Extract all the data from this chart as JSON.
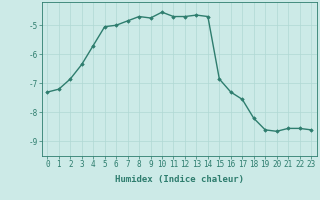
{
  "x": [
    0,
    1,
    2,
    3,
    4,
    5,
    6,
    7,
    8,
    9,
    10,
    11,
    12,
    13,
    14,
    15,
    16,
    17,
    18,
    19,
    20,
    21,
    22,
    23
  ],
  "y": [
    -7.3,
    -7.2,
    -6.85,
    -6.35,
    -5.7,
    -5.05,
    -5.0,
    -4.85,
    -4.7,
    -4.75,
    -4.55,
    -4.7,
    -4.7,
    -4.65,
    -4.7,
    -6.85,
    -7.3,
    -7.55,
    -8.2,
    -8.6,
    -8.65,
    -8.55,
    -8.55,
    -8.6
  ],
  "line_color": "#2e7d6e",
  "marker": "D",
  "marker_size": 1.8,
  "bg_color": "#cceae7",
  "grid_color": "#b0d8d4",
  "axis_color": "#2e7d6e",
  "tick_color": "#2e7d6e",
  "xlabel": "Humidex (Indice chaleur)",
  "xlabel_fontsize": 6.5,
  "ylim": [
    -9.5,
    -4.2
  ],
  "yticks": [
    -9,
    -8,
    -7,
    -6,
    -5
  ],
  "xticks": [
    0,
    1,
    2,
    3,
    4,
    5,
    6,
    7,
    8,
    9,
    10,
    11,
    12,
    13,
    14,
    15,
    16,
    17,
    18,
    19,
    20,
    21,
    22,
    23
  ],
  "tick_fontsize": 5.5,
  "line_width": 1.0
}
